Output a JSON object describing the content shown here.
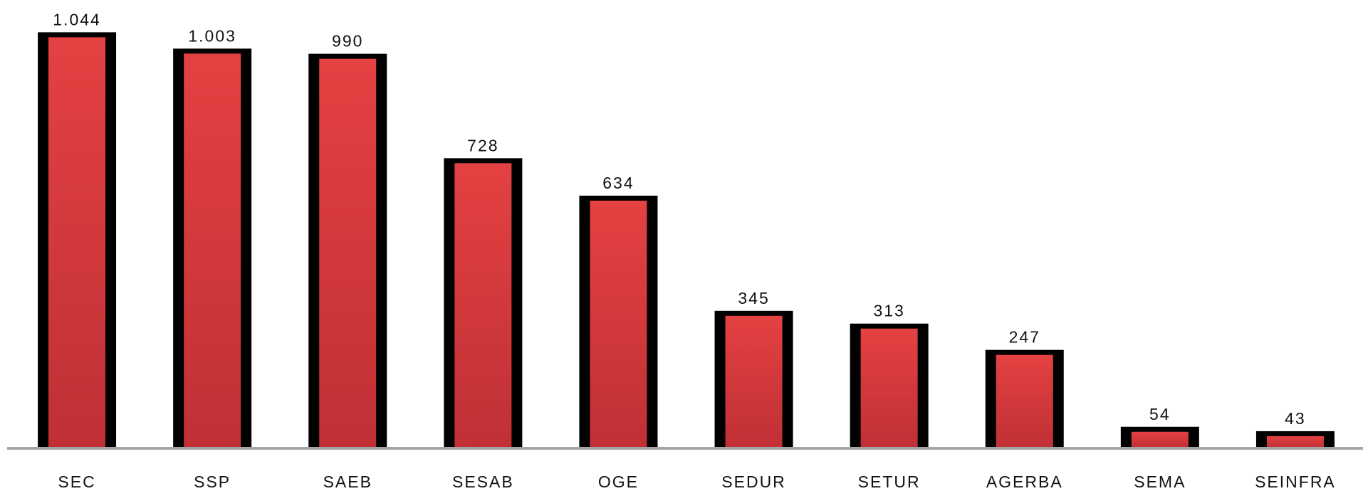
{
  "chart_data": {
    "type": "bar",
    "categories": [
      "SEC",
      "SSP",
      "SAEB",
      "SESAB",
      "OGE",
      "SEDUR",
      "SETUR",
      "AGERBA",
      "SEMA",
      "SEINFRA"
    ],
    "values": [
      1044,
      1003,
      990,
      728,
      634,
      345,
      313,
      247,
      54,
      43
    ],
    "value_labels": [
      "1.044",
      "1.003",
      "990",
      "728",
      "634",
      "345",
      "313",
      "247",
      "54",
      "43"
    ],
    "color": "#dc3c3e",
    "border_color": "#000000",
    "ylim": [
      0,
      1100
    ],
    "grid": false
  }
}
